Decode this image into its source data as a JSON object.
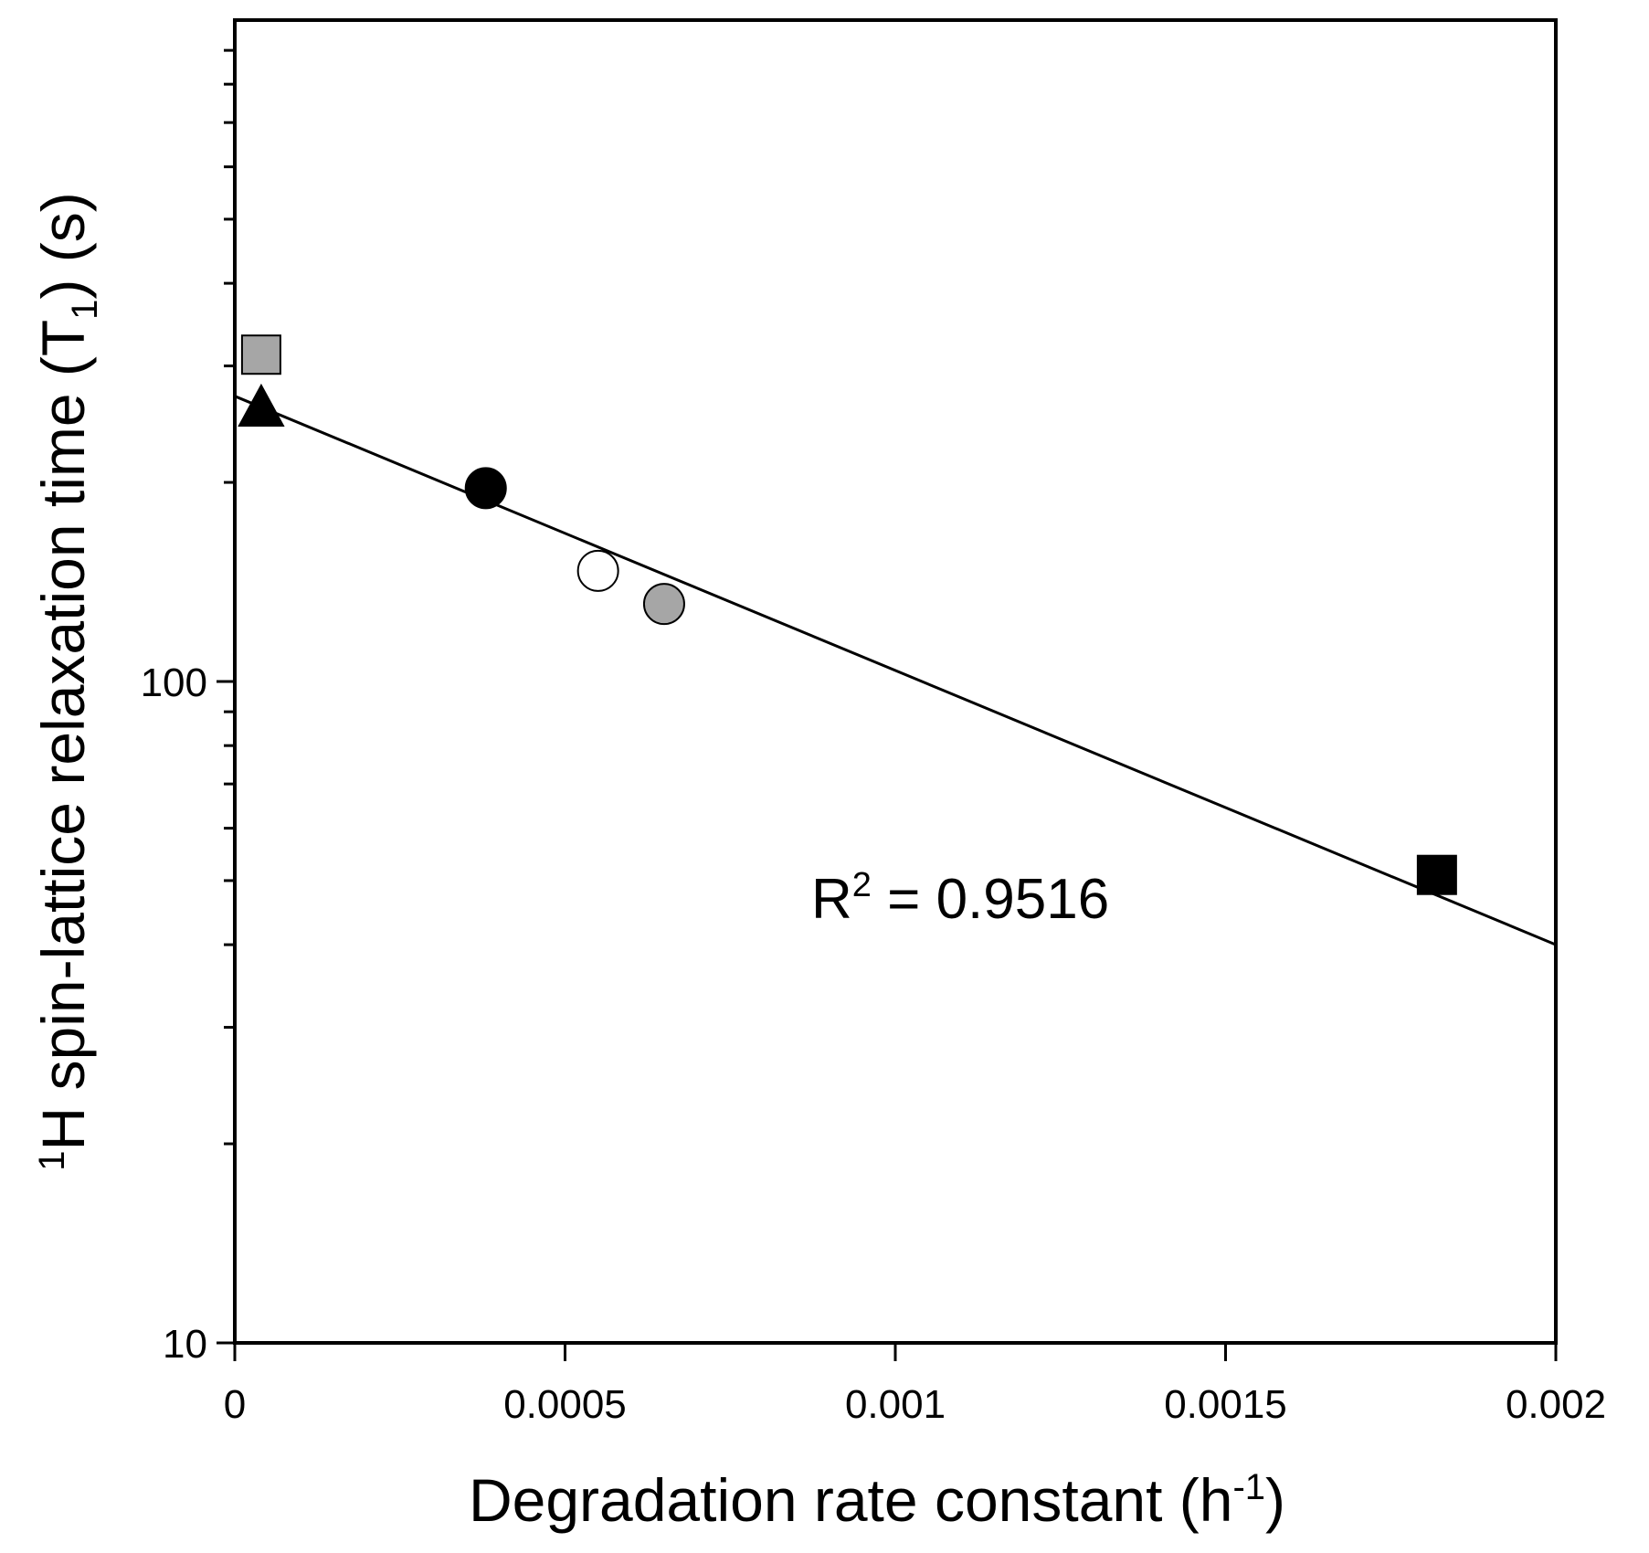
{
  "chart_data": {
    "type": "scatter",
    "title": "",
    "xlabel": {
      "main": "Degradation rate constant (h",
      "sup": "-1",
      "close": ")"
    },
    "ylabel": {
      "sup_pre": "1",
      "pre": "H spin-lattice relaxation time (T",
      "sub": "1",
      "post": ") (s)"
    },
    "xlim": [
      0,
      0.002
    ],
    "ylim": [
      10,
      1000
    ],
    "yscale": "log",
    "x_ticks": [
      0,
      0.0005,
      0.001,
      0.0015,
      0.002
    ],
    "x_tick_labels": [
      "0",
      "0.0005",
      "0.001",
      "0.0015",
      "0.002"
    ],
    "y_major_ticks": [
      10,
      100
    ],
    "y_tick_labels": [
      "10",
      "100"
    ],
    "y_minor_ticks": [
      20,
      30,
      40,
      50,
      60,
      70,
      80,
      90,
      200,
      300,
      400,
      500,
      600,
      700,
      800,
      900
    ],
    "grid": false,
    "points": [
      {
        "name": "gray-square",
        "marker": "square",
        "fill": "#a6a6a6",
        "x": 4e-05,
        "y": 312
      },
      {
        "name": "black-triangle",
        "marker": "triangle",
        "fill": "#000000",
        "x": 4e-05,
        "y": 258
      },
      {
        "name": "black-circle",
        "marker": "circle",
        "fill": "#000000",
        "x": 0.00038,
        "y": 196
      },
      {
        "name": "white-circle",
        "marker": "circle",
        "fill": "#ffffff",
        "x": 0.00055,
        "y": 147
      },
      {
        "name": "gray-circle",
        "marker": "circle",
        "fill": "#a6a6a6",
        "x": 0.00065,
        "y": 131
      },
      {
        "name": "black-square",
        "marker": "square",
        "fill": "#000000",
        "x": 0.00182,
        "y": 51
      }
    ],
    "fit_line": {
      "x": [
        0,
        0.002
      ],
      "y": [
        270,
        40
      ]
    },
    "annotation": {
      "text": "R",
      "sup": "2",
      "rest": " = 0.9516"
    }
  }
}
